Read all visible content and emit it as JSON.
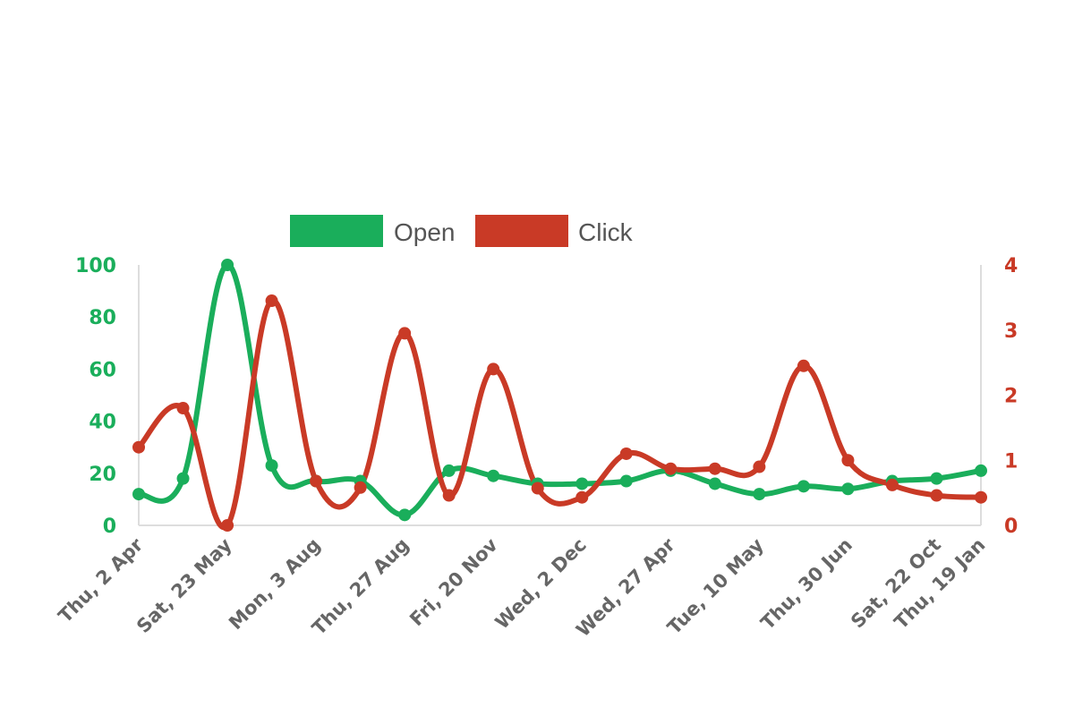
{
  "chart_data": {
    "type": "line",
    "title": "",
    "xlabel": "",
    "ylabel": "",
    "x_tick_labels": [
      "Thu, 2 Apr",
      "Sat, 23 May",
      "Mon, 3 Aug",
      "Thu, 27 Aug",
      "Fri, 20 Nov",
      "Wed, 2 Dec",
      "Wed, 27 Apr",
      "Tue, 10 May",
      "Thu, 30 Jun",
      "Sat, 22 Oct",
      "Thu, 19 Jan"
    ],
    "x_count": 20,
    "y_left": {
      "ylim": [
        0,
        100
      ],
      "ticks": [
        0,
        20,
        40,
        60,
        80,
        100
      ],
      "color": "#1aae5b"
    },
    "y_right": {
      "ylim": [
        0,
        4
      ],
      "ticks": [
        0,
        1,
        2,
        3,
        4
      ],
      "color": "#c93a26"
    },
    "legend_position": "top-center",
    "series": [
      {
        "name": "Open",
        "axis": "left",
        "color": "#1aae5b",
        "values": [
          12,
          18,
          100,
          23,
          17,
          17,
          4,
          21,
          19,
          16,
          16,
          17,
          21,
          16,
          12,
          15,
          14,
          17,
          18,
          21
        ]
      },
      {
        "name": "Click",
        "axis": "right",
        "color": "#c93a26",
        "values": [
          1.2,
          1.8,
          0,
          3.45,
          0.68,
          0.58,
          2.95,
          0.46,
          2.4,
          0.57,
          0.43,
          1.1,
          0.87,
          0.87,
          0.9,
          2.45,
          1.0,
          0.62,
          0.46,
          0.43
        ]
      }
    ]
  }
}
